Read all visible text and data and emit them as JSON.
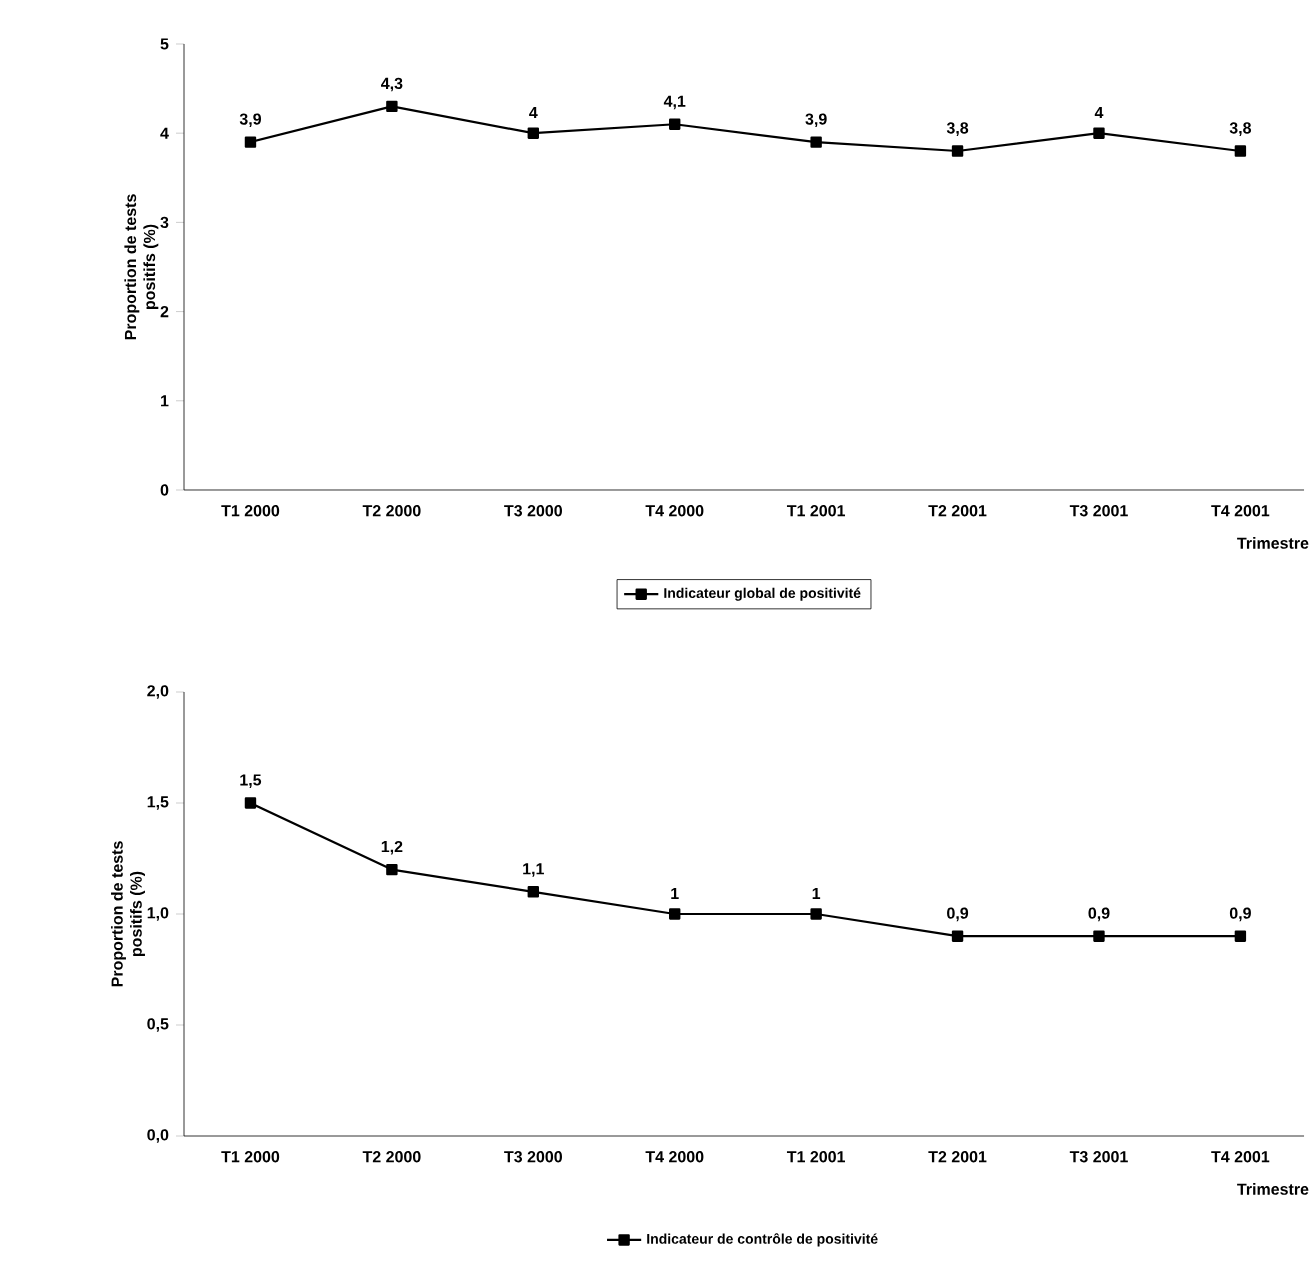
{
  "chart_data": [
    {
      "type": "line",
      "ylabel": "Proportion de tests positifs (%)",
      "xlabel": "Trimestre",
      "categories": [
        "T1 2000",
        "T2 2000",
        "T3 2000",
        "T4 2000",
        "T1 2001",
        "T2 2001",
        "T3 2001",
        "T4 2001"
      ],
      "series": [
        {
          "name": "Indicateur global de positivité",
          "color": "#000000",
          "values": [
            3.9,
            4.3,
            4,
            4.1,
            3.9,
            3.8,
            4,
            3.8
          ],
          "value_labels": [
            "3,9",
            "4,3",
            "4",
            "4,1",
            "3,9",
            "3,8",
            "4",
            "3,8"
          ]
        }
      ],
      "ylim": [
        0,
        5
      ],
      "yticks": [
        0,
        1,
        2,
        3,
        4,
        5
      ],
      "marker": "square",
      "legend": "bottom",
      "grid": false
    },
    {
      "type": "line",
      "ylabel": "Proportion de tests positifs (%)",
      "xlabel": "Trimestre",
      "categories": [
        "T1 2000",
        "T2 2000",
        "T3 2000",
        "T4 2000",
        "T1 2001",
        "T2 2001",
        "T3 2001",
        "T4 2001"
      ],
      "series": [
        {
          "name": "Indicateur de contrôle de positivité",
          "color": "#000000",
          "values": [
            1.5,
            1.2,
            1.1,
            1,
            1,
            0.9,
            0.9,
            0.9
          ],
          "value_labels": [
            "1,5",
            "1,2",
            "1,1",
            "1",
            "1",
            "0,9",
            "0,9",
            "0,9"
          ]
        }
      ],
      "ylim": [
        0,
        2
      ],
      "yticks": [
        {
          "value": 0,
          "label": "0,0"
        },
        {
          "value": 0.5,
          "label": "0,5"
        },
        {
          "value": 1,
          "label": "1,0"
        },
        {
          "value": 1.5,
          "label": "1,5"
        },
        {
          "value": 2,
          "label": "2,0"
        }
      ],
      "marker": "square",
      "legend": "bottom",
      "grid": false
    }
  ]
}
